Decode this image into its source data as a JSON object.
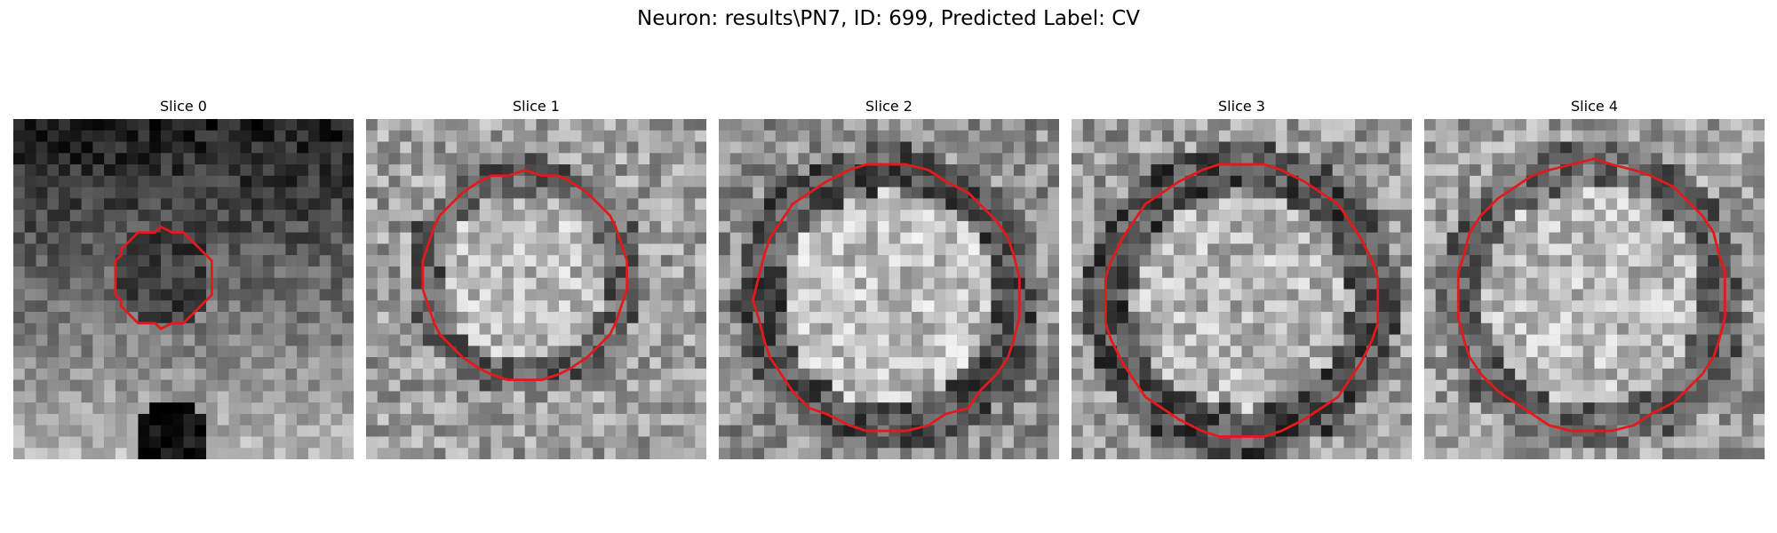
{
  "figure": {
    "title": "Neuron: results\\PN7, ID: 699, Predicted Label: CV"
  },
  "contour_color": "#e31a1c",
  "grid_size": 30,
  "slices": [
    {
      "label": "Slice 0",
      "intensity": {
        "base": 0.4,
        "bright": 0.62,
        "dark": 0.1
      },
      "contour": {
        "cx": 13.2,
        "cy": 14.0,
        "r": 4.3
      }
    },
    {
      "label": "Slice 1",
      "intensity": {
        "base": 0.62,
        "bright": 0.78,
        "dark": 0.28
      },
      "contour": {
        "cx": 14.0,
        "cy": 13.8,
        "r": 9.1
      }
    },
    {
      "label": "Slice 2",
      "intensity": {
        "base": 0.55,
        "bright": 0.8,
        "dark": 0.22
      },
      "contour": {
        "cx": 14.9,
        "cy": 15.8,
        "r": 11.7
      }
    },
    {
      "label": "Slice 3",
      "intensity": {
        "base": 0.6,
        "bright": 0.76,
        "dark": 0.2
      },
      "contour": {
        "cx": 15.0,
        "cy": 16.0,
        "r": 12.0
      }
    },
    {
      "label": "Slice 4",
      "intensity": {
        "base": 0.62,
        "bright": 0.78,
        "dark": 0.3
      },
      "contour": {
        "cx": 14.8,
        "cy": 15.6,
        "r": 11.9
      }
    }
  ]
}
